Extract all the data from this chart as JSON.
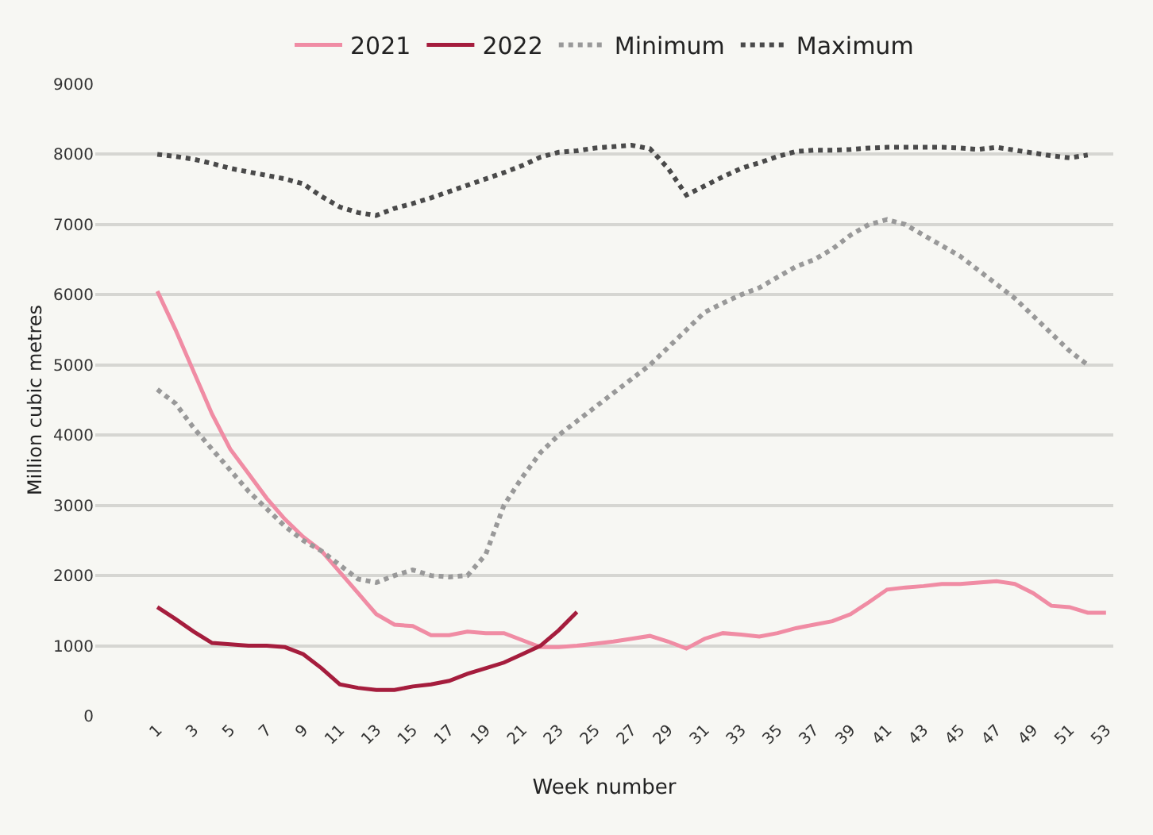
{
  "chart_data": {
    "type": "line",
    "xlabel": "Week number",
    "ylabel": "Million cubic metres",
    "xlim": [
      -2.4,
      53.4
    ],
    "xticks": [
      1,
      3,
      5,
      7,
      9,
      11,
      13,
      15,
      17,
      19,
      21,
      23,
      25,
      27,
      29,
      31,
      33,
      35,
      37,
      39,
      41,
      43,
      45,
      47,
      49,
      51,
      53
    ],
    "ylim": [
      0,
      9000
    ],
    "yticks": [
      0,
      1000,
      2000,
      3000,
      4000,
      5000,
      6000,
      7000,
      8000,
      9000
    ],
    "grid": "y",
    "legend": "top",
    "marker": "none",
    "series": [
      {
        "name": "2021",
        "color": "#f08ca4",
        "line_style": "solid",
        "x": [
          1,
          2,
          3,
          4,
          5,
          6,
          7,
          8,
          9,
          10,
          11,
          12,
          13,
          14,
          15,
          16,
          17,
          18,
          19,
          20,
          21,
          22,
          23,
          24,
          25,
          26,
          27,
          28,
          29,
          30,
          31,
          32,
          33,
          34,
          35,
          36,
          37,
          38,
          39,
          40,
          41,
          42,
          43,
          44,
          45,
          46,
          47,
          48,
          49,
          50,
          51,
          52,
          53
        ],
        "values": [
          6050,
          5500,
          4900,
          4300,
          3800,
          3450,
          3100,
          2800,
          2550,
          2350,
          2050,
          1750,
          1450,
          1300,
          1280,
          1150,
          1150,
          1200,
          1180,
          1180,
          1080,
          980,
          980,
          1000,
          1030,
          1060,
          1100,
          1140,
          1060,
          960,
          1100,
          1180,
          1160,
          1130,
          1180,
          1250,
          1300,
          1350,
          1450,
          1620,
          1800,
          1830,
          1850,
          1880,
          1880,
          1900,
          1920,
          1880,
          1750,
          1570,
          1550,
          1470,
          1470
        ]
      },
      {
        "name": "2022",
        "color": "#a51d3d",
        "line_style": "solid",
        "x": [
          1,
          2,
          3,
          4,
          5,
          6,
          7,
          8,
          9,
          10,
          11,
          12,
          13,
          14,
          15,
          16,
          17,
          18,
          19,
          20,
          21,
          22,
          23,
          24
        ],
        "values": [
          1550,
          1380,
          1200,
          1040,
          1020,
          1000,
          1000,
          980,
          880,
          680,
          450,
          400,
          370,
          370,
          420,
          450,
          500,
          600,
          680,
          760,
          880,
          1000,
          1220,
          1480
        ]
      },
      {
        "name": "Minimum",
        "color": "#999999",
        "line_style": "dotted",
        "x": [
          1,
          2,
          3,
          4,
          5,
          6,
          7,
          8,
          9,
          10,
          11,
          12,
          13,
          14,
          15,
          16,
          17,
          18,
          19,
          20,
          21,
          22,
          23,
          24,
          25,
          26,
          27,
          28,
          29,
          30,
          31,
          32,
          33,
          34,
          35,
          36,
          37,
          38,
          39,
          40,
          41,
          42,
          43,
          44,
          45,
          46,
          47,
          48,
          49,
          50,
          51,
          52
        ],
        "values": [
          4650,
          4450,
          4100,
          3800,
          3500,
          3200,
          2950,
          2700,
          2500,
          2350,
          2150,
          1950,
          1900,
          2000,
          2080,
          2000,
          1980,
          2000,
          2300,
          3000,
          3400,
          3750,
          4000,
          4200,
          4400,
          4600,
          4800,
          5000,
          5250,
          5500,
          5750,
          5880,
          6000,
          6100,
          6250,
          6400,
          6500,
          6650,
          6850,
          7000,
          7070,
          7000,
          6850,
          6700,
          6550,
          6350,
          6150,
          5950,
          5700,
          5450,
          5200,
          5000
        ]
      },
      {
        "name": "Maximum",
        "color": "#4a4a4a",
        "line_style": "dotted",
        "x": [
          1,
          2,
          3,
          4,
          5,
          6,
          7,
          8,
          9,
          10,
          11,
          12,
          13,
          14,
          15,
          16,
          17,
          18,
          19,
          20,
          21,
          22,
          23,
          24,
          25,
          26,
          27,
          28,
          29,
          30,
          31,
          32,
          33,
          34,
          35,
          36,
          37,
          38,
          39,
          40,
          41,
          42,
          43,
          44,
          45,
          46,
          47,
          48,
          49,
          50,
          51,
          52
        ],
        "values": [
          8000,
          7970,
          7930,
          7870,
          7800,
          7750,
          7700,
          7650,
          7580,
          7400,
          7250,
          7170,
          7130,
          7230,
          7300,
          7380,
          7470,
          7560,
          7650,
          7740,
          7840,
          7960,
          8030,
          8050,
          8090,
          8110,
          8130,
          8080,
          7800,
          7420,
          7550,
          7680,
          7800,
          7880,
          7970,
          8040,
          8060,
          8060,
          8070,
          8090,
          8100,
          8100,
          8100,
          8100,
          8090,
          8070,
          8100,
          8060,
          8020,
          7980,
          7950,
          7990
        ]
      }
    ]
  }
}
